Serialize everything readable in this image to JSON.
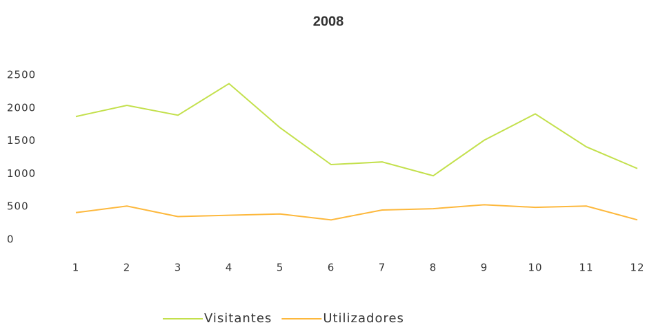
{
  "chart_data": {
    "type": "line",
    "title": "2008",
    "categories": [
      "1",
      "2",
      "3",
      "4",
      "5",
      "6",
      "7",
      "8",
      "9",
      "10",
      "11",
      "12"
    ],
    "series": [
      {
        "name": "Visitantes",
        "color": "#c3e04c",
        "values": [
          1870,
          2040,
          1890,
          2370,
          1700,
          1140,
          1180,
          970,
          1510,
          1910,
          1410,
          1080
        ]
      },
      {
        "name": "Utilizadores",
        "color": "#fdb83c",
        "values": [
          410,
          510,
          350,
          370,
          390,
          300,
          450,
          470,
          530,
          490,
          510,
          300
        ]
      }
    ],
    "ylim": [
      0,
      2500
    ],
    "yticks": [
      0,
      500,
      1000,
      1500,
      2000,
      2500
    ],
    "grid": false,
    "legend": "bottom"
  }
}
